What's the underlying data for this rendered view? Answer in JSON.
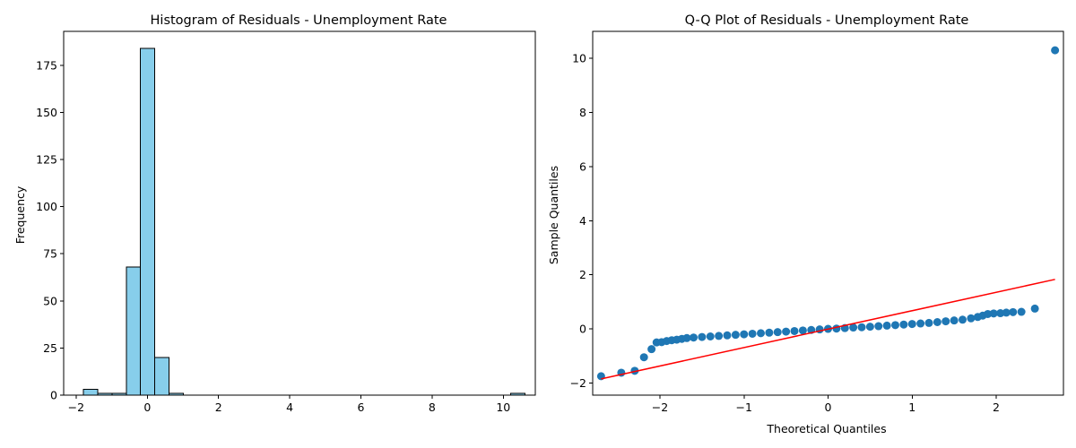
{
  "chart_data": [
    {
      "type": "bar",
      "subtype": "histogram",
      "title": "Histogram of Residuals - Unemployment Rate",
      "xlabel": "",
      "ylabel": "Frequency",
      "xlim": [
        -2.35,
        10.9
      ],
      "ylim": [
        0,
        193
      ],
      "xticks": [
        -2,
        0,
        2,
        4,
        6,
        8,
        10
      ],
      "yticks": [
        0,
        25,
        50,
        75,
        100,
        125,
        150,
        175
      ],
      "grid": false,
      "bar_color": "#87ceeb",
      "edge_color": "#000000",
      "bins": [
        {
          "x0": -1.79,
          "x1": -1.39,
          "count": 3
        },
        {
          "x0": -1.39,
          "x1": -0.99,
          "count": 1
        },
        {
          "x0": -0.99,
          "x1": -0.59,
          "count": 1
        },
        {
          "x0": -0.59,
          "x1": -0.19,
          "count": 68
        },
        {
          "x0": -0.19,
          "x1": 0.21,
          "count": 184
        },
        {
          "x0": 0.21,
          "x1": 0.61,
          "count": 20
        },
        {
          "x0": 0.61,
          "x1": 1.01,
          "count": 1
        },
        {
          "x0": 1.01,
          "x1": 1.41,
          "count": 0
        },
        {
          "x0": 1.41,
          "x1": 1.81,
          "count": 0
        },
        {
          "x0": 1.81,
          "x1": 2.21,
          "count": 0
        },
        {
          "x0": 2.21,
          "x1": 2.61,
          "count": 0
        },
        {
          "x0": 2.61,
          "x1": 3.01,
          "count": 0
        },
        {
          "x0": 3.01,
          "x1": 3.41,
          "count": 0
        },
        {
          "x0": 3.41,
          "x1": 3.81,
          "count": 0
        },
        {
          "x0": 3.81,
          "x1": 4.21,
          "count": 0
        },
        {
          "x0": 4.21,
          "x1": 4.61,
          "count": 0
        },
        {
          "x0": 4.61,
          "x1": 5.01,
          "count": 0
        },
        {
          "x0": 5.01,
          "x1": 5.41,
          "count": 0
        },
        {
          "x0": 5.41,
          "x1": 5.81,
          "count": 0
        },
        {
          "x0": 5.81,
          "x1": 6.21,
          "count": 0
        },
        {
          "x0": 6.21,
          "x1": 6.61,
          "count": 0
        },
        {
          "x0": 6.61,
          "x1": 7.01,
          "count": 0
        },
        {
          "x0": 7.01,
          "x1": 7.41,
          "count": 0
        },
        {
          "x0": 7.41,
          "x1": 7.81,
          "count": 0
        },
        {
          "x0": 7.81,
          "x1": 8.21,
          "count": 0
        },
        {
          "x0": 8.21,
          "x1": 8.61,
          "count": 0
        },
        {
          "x0": 8.61,
          "x1": 9.01,
          "count": 0
        },
        {
          "x0": 9.01,
          "x1": 9.41,
          "count": 0
        },
        {
          "x0": 9.41,
          "x1": 9.81,
          "count": 0
        },
        {
          "x0": 9.81,
          "x1": 10.21,
          "count": 0
        },
        {
          "x0": 10.21,
          "x1": 10.61,
          "count": 1
        }
      ]
    },
    {
      "type": "scatter",
      "subtype": "qq-plot",
      "title": "Q-Q Plot of Residuals - Unemployment Rate",
      "xlabel": "Theoretical Quantiles",
      "ylabel": "Sample Quantiles",
      "xlim": [
        -2.8,
        2.8
      ],
      "ylim": [
        -2.45,
        11.0
      ],
      "xticks": [
        -2,
        -1,
        0,
        1,
        2
      ],
      "yticks": [
        -2,
        0,
        2,
        4,
        6,
        8,
        10
      ],
      "grid": false,
      "marker_color": "#1f77b4",
      "line_color": "#ff0000",
      "reference_line": {
        "x": [
          -2.7,
          2.7
        ],
        "y": [
          -1.85,
          1.83
        ]
      },
      "points": [
        {
          "x": -2.7,
          "y": -1.75
        },
        {
          "x": -2.46,
          "y": -1.62
        },
        {
          "x": -2.3,
          "y": -1.55
        },
        {
          "x": -2.19,
          "y": -1.05
        },
        {
          "x": -2.1,
          "y": -0.75
        },
        {
          "x": -2.04,
          "y": -0.5
        },
        {
          "x": -1.98,
          "y": -0.49
        },
        {
          "x": -1.92,
          "y": -0.45
        },
        {
          "x": -1.86,
          "y": -0.42
        },
        {
          "x": -1.8,
          "y": -0.4
        },
        {
          "x": -1.74,
          "y": -0.37
        },
        {
          "x": -1.68,
          "y": -0.34
        },
        {
          "x": -1.6,
          "y": -0.32
        },
        {
          "x": -1.5,
          "y": -0.3
        },
        {
          "x": -1.4,
          "y": -0.28
        },
        {
          "x": -1.3,
          "y": -0.26
        },
        {
          "x": -1.2,
          "y": -0.24
        },
        {
          "x": -1.1,
          "y": -0.22
        },
        {
          "x": -1.0,
          "y": -0.2
        },
        {
          "x": -0.9,
          "y": -0.18
        },
        {
          "x": -0.8,
          "y": -0.16
        },
        {
          "x": -0.7,
          "y": -0.14
        },
        {
          "x": -0.6,
          "y": -0.12
        },
        {
          "x": -0.5,
          "y": -0.1
        },
        {
          "x": -0.4,
          "y": -0.08
        },
        {
          "x": -0.3,
          "y": -0.06
        },
        {
          "x": -0.2,
          "y": -0.04
        },
        {
          "x": -0.1,
          "y": -0.02
        },
        {
          "x": 0.0,
          "y": 0.0
        },
        {
          "x": 0.1,
          "y": 0.01
        },
        {
          "x": 0.2,
          "y": 0.03
        },
        {
          "x": 0.3,
          "y": 0.05
        },
        {
          "x": 0.4,
          "y": 0.06
        },
        {
          "x": 0.5,
          "y": 0.08
        },
        {
          "x": 0.6,
          "y": 0.1
        },
        {
          "x": 0.7,
          "y": 0.12
        },
        {
          "x": 0.8,
          "y": 0.14
        },
        {
          "x": 0.9,
          "y": 0.16
        },
        {
          "x": 1.0,
          "y": 0.18
        },
        {
          "x": 1.1,
          "y": 0.2
        },
        {
          "x": 1.2,
          "y": 0.22
        },
        {
          "x": 1.3,
          "y": 0.25
        },
        {
          "x": 1.4,
          "y": 0.28
        },
        {
          "x": 1.5,
          "y": 0.31
        },
        {
          "x": 1.6,
          "y": 0.34
        },
        {
          "x": 1.7,
          "y": 0.39
        },
        {
          "x": 1.78,
          "y": 0.44
        },
        {
          "x": 1.84,
          "y": 0.49
        },
        {
          "x": 1.9,
          "y": 0.55
        },
        {
          "x": 1.97,
          "y": 0.57
        },
        {
          "x": 2.05,
          "y": 0.58
        },
        {
          "x": 2.12,
          "y": 0.6
        },
        {
          "x": 2.2,
          "y": 0.62
        },
        {
          "x": 2.3,
          "y": 0.63
        },
        {
          "x": 2.46,
          "y": 0.75
        },
        {
          "x": 2.7,
          "y": 10.3
        }
      ]
    }
  ]
}
